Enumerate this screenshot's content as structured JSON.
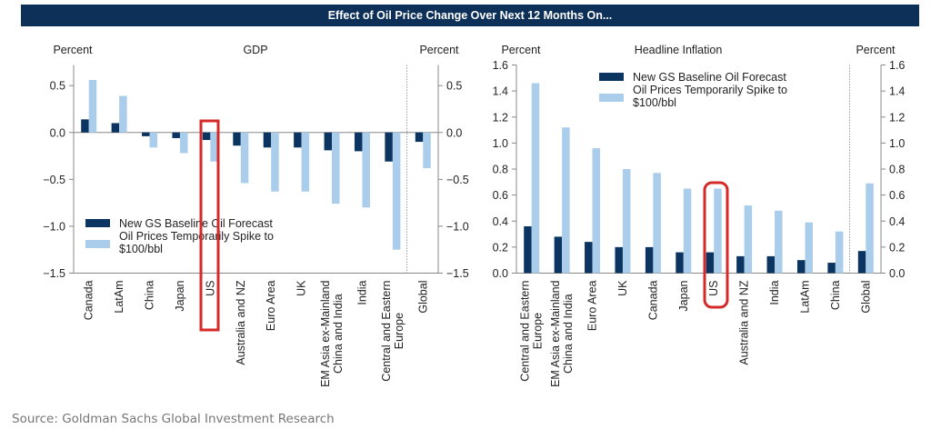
{
  "header": {
    "title": "Effect of Oil Price Change Over Next 12 Months On..."
  },
  "colors": {
    "baseline": "#0b3560",
    "spike": "#a9cdea",
    "title_bg": "#0d3059",
    "highlight": "#d42a2a",
    "axis": "#888888"
  },
  "chart_data": [
    {
      "type": "bar",
      "title": "GDP",
      "ylabel_left": "Percent",
      "ylabel_right": "Percent",
      "ylim": [
        -1.5,
        0.75
      ],
      "yticks": [
        0.5,
        0.0,
        -0.5,
        -1.0,
        -1.5
      ],
      "ytick_labels": [
        "0.5",
        "0.0",
        "−0.5",
        "−1.0",
        "−1.5"
      ],
      "legend_position": "bottom-left",
      "categories": [
        "Canada",
        "LatAm",
        "China",
        "Japan",
        "US",
        "Australia and NZ",
        "Euro Area",
        "UK",
        "EM Asia ex-Mainland China and India",
        "India",
        "Central and Eastern Europe",
        "Global"
      ],
      "category_label_lines": [
        [
          "Canada"
        ],
        [
          "LatAm"
        ],
        [
          "China"
        ],
        [
          "Japan"
        ],
        [
          "US"
        ],
        [
          "Australia and NZ"
        ],
        [
          "Euro Area"
        ],
        [
          "UK"
        ],
        [
          "EM Asia ex-Mainland",
          "China and India"
        ],
        [
          "India"
        ],
        [
          "Central and Eastern",
          "Europe"
        ],
        [
          "Global"
        ]
      ],
      "series": [
        {
          "name": "New GS Baseline Oil Forecast",
          "values": [
            0.14,
            0.1,
            -0.04,
            -0.06,
            -0.08,
            -0.14,
            -0.16,
            -0.16,
            -0.19,
            -0.2,
            -0.31,
            -0.1
          ]
        },
        {
          "name": "Oil Prices Temporarily Spike to $100/bbl",
          "name_lines": [
            "Oil Prices Temporarily Spike to",
            "$100/bbl"
          ],
          "values": [
            0.56,
            0.39,
            -0.16,
            -0.22,
            -0.31,
            -0.54,
            -0.63,
            -0.63,
            -0.76,
            -0.8,
            -1.25,
            -0.38
          ]
        }
      ],
      "separator_before": "Global",
      "highlight": "US"
    },
    {
      "type": "bar",
      "title": "Headline Inflation",
      "ylabel_left": "Percent",
      "ylabel_right": "Percent",
      "ylim": [
        0.0,
        1.6
      ],
      "yticks": [
        1.6,
        1.4,
        1.2,
        1.0,
        0.8,
        0.6,
        0.4,
        0.2,
        0.0
      ],
      "ytick_labels": [
        "1.6",
        "1.4",
        "1.2",
        "1.0",
        "0.8",
        "0.6",
        "0.4",
        "0.2",
        "0.0"
      ],
      "legend_position": "top-center",
      "categories": [
        "Central and Eastern Europe",
        "EM Asia ex-Mainland China and India",
        "Euro Area",
        "UK",
        "Canada",
        "Japan",
        "US",
        "Australia and NZ",
        "India",
        "LatAm",
        "China",
        "Global"
      ],
      "category_label_lines": [
        [
          "Central and Eastern",
          "Europe"
        ],
        [
          "EM Asia ex-Mainland",
          "China and India"
        ],
        [
          "Euro Area"
        ],
        [
          "UK"
        ],
        [
          "Canada"
        ],
        [
          "Japan"
        ],
        [
          "US"
        ],
        [
          "Australia and NZ"
        ],
        [
          "India"
        ],
        [
          "LatAm"
        ],
        [
          "China"
        ],
        [
          "Global"
        ]
      ],
      "series": [
        {
          "name": "New GS Baseline Oil Forecast",
          "values": [
            0.36,
            0.28,
            0.24,
            0.2,
            0.2,
            0.16,
            0.16,
            0.13,
            0.13,
            0.1,
            0.08,
            0.17
          ]
        },
        {
          "name": "Oil Prices Temporarily Spike to $100/bbl",
          "name_lines": [
            "Oil Prices Temporarily Spike to",
            "$100/bbl"
          ],
          "values": [
            1.46,
            1.12,
            0.96,
            0.8,
            0.77,
            0.65,
            0.65,
            0.52,
            0.48,
            0.39,
            0.32,
            0.69
          ]
        }
      ],
      "separator_before": "Global",
      "highlight": "US"
    }
  ],
  "footer": {
    "source": "Source: Goldman Sachs Global Investment Research"
  }
}
